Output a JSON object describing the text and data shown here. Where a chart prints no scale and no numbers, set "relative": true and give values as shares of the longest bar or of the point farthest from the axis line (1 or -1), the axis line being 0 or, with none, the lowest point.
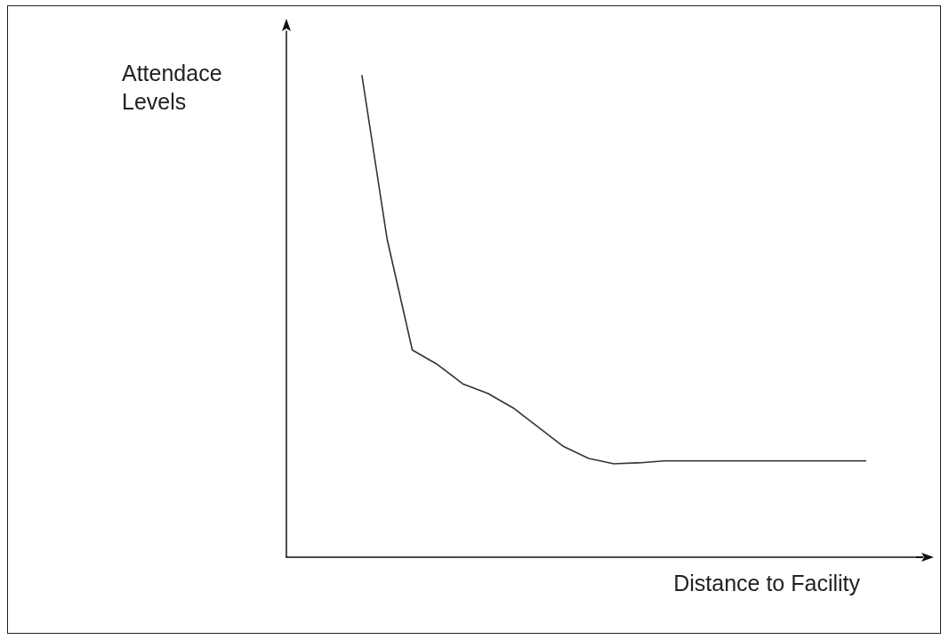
{
  "chart_data": {
    "type": "line",
    "relative": true,
    "xlabel": "Distance to Facility",
    "ylabel": "Attendace Levels",
    "categories": [
      null,
      null,
      null,
      null,
      null,
      null,
      null,
      null,
      null,
      null,
      null,
      null,
      null,
      null,
      null,
      null,
      null,
      null,
      null,
      null,
      null,
      null,
      null,
      null,
      null,
      null
    ],
    "series": [
      {
        "color": "#333333",
        "values": [
          null,
          null,
          null,
          1.0,
          0.66,
          0.43,
          0.4,
          0.36,
          0.34,
          0.31,
          0.27,
          0.23,
          0.205,
          0.194,
          0.196,
          0.2,
          0.2,
          0.2,
          0.2,
          0.2,
          0.2,
          0.2,
          0.2,
          0.2,
          null,
          null
        ]
      }
    ],
    "marker": "none",
    "line_style": "solid",
    "grid": false
  }
}
